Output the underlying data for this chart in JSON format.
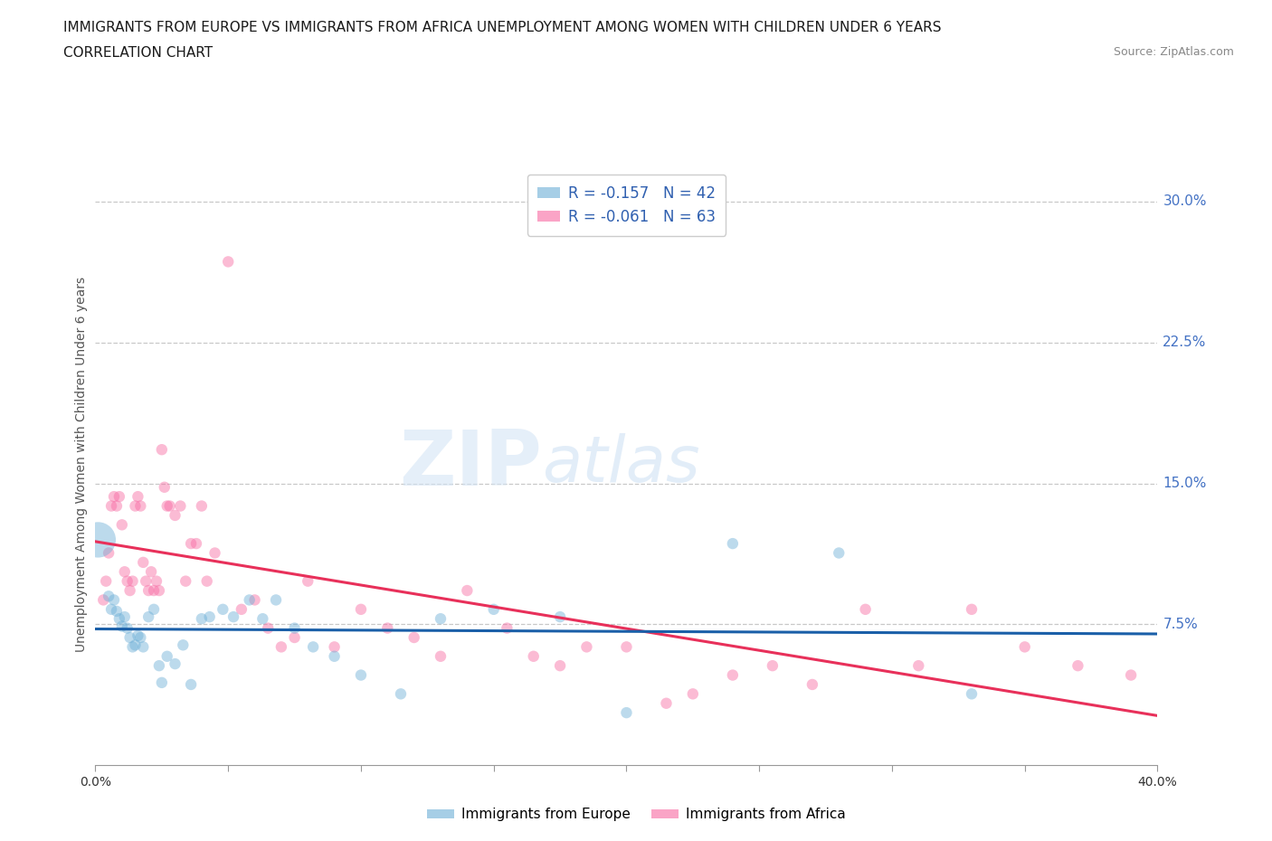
{
  "title_line1": "IMMIGRANTS FROM EUROPE VS IMMIGRANTS FROM AFRICA UNEMPLOYMENT AMONG WOMEN WITH CHILDREN UNDER 6 YEARS",
  "title_line2": "CORRELATION CHART",
  "source": "Source: ZipAtlas.com",
  "ylabel": "Unemployment Among Women with Children Under 6 years",
  "xlim": [
    0.0,
    0.4
  ],
  "ylim": [
    0.0,
    0.32
  ],
  "yticks": [
    0.075,
    0.15,
    0.225,
    0.3
  ],
  "ytick_labels": [
    "7.5%",
    "15.0%",
    "22.5%",
    "30.0%"
  ],
  "xticks": [
    0.0,
    0.05,
    0.1,
    0.15,
    0.2,
    0.25,
    0.3,
    0.35,
    0.4
  ],
  "xtick_labels": [
    "0.0%",
    "",
    "",
    "",
    "",
    "",
    "",
    "",
    "40.0%"
  ],
  "europe_color": "#6baed6",
  "africa_color": "#f768a1",
  "europe_R": -0.157,
  "europe_N": 42,
  "africa_R": -0.061,
  "africa_N": 63,
  "europe_label": "Immigrants from Europe",
  "africa_label": "Immigrants from Africa",
  "background_color": "#ffffff",
  "grid_color": "#c8c8c8",
  "axis_label_color": "#4472c4",
  "watermark_zip": "ZIP",
  "watermark_atlas": "atlas",
  "europe_x": [
    0.001,
    0.005,
    0.006,
    0.007,
    0.008,
    0.009,
    0.01,
    0.011,
    0.012,
    0.013,
    0.014,
    0.015,
    0.016,
    0.017,
    0.018,
    0.02,
    0.022,
    0.024,
    0.025,
    0.027,
    0.03,
    0.033,
    0.036,
    0.04,
    0.043,
    0.048,
    0.052,
    0.058,
    0.063,
    0.068,
    0.075,
    0.082,
    0.09,
    0.1,
    0.115,
    0.13,
    0.15,
    0.175,
    0.2,
    0.24,
    0.28,
    0.33
  ],
  "europe_y": [
    0.12,
    0.09,
    0.083,
    0.088,
    0.082,
    0.078,
    0.074,
    0.079,
    0.073,
    0.068,
    0.063,
    0.064,
    0.069,
    0.068,
    0.063,
    0.079,
    0.083,
    0.053,
    0.044,
    0.058,
    0.054,
    0.064,
    0.043,
    0.078,
    0.079,
    0.083,
    0.079,
    0.088,
    0.078,
    0.088,
    0.073,
    0.063,
    0.058,
    0.048,
    0.038,
    0.078,
    0.083,
    0.079,
    0.028,
    0.118,
    0.113,
    0.038
  ],
  "africa_x": [
    0.003,
    0.004,
    0.005,
    0.006,
    0.007,
    0.008,
    0.009,
    0.01,
    0.011,
    0.012,
    0.013,
    0.014,
    0.015,
    0.016,
    0.017,
    0.018,
    0.019,
    0.02,
    0.021,
    0.022,
    0.023,
    0.024,
    0.025,
    0.026,
    0.027,
    0.028,
    0.03,
    0.032,
    0.034,
    0.036,
    0.038,
    0.04,
    0.042,
    0.045,
    0.05,
    0.055,
    0.06,
    0.065,
    0.07,
    0.075,
    0.08,
    0.09,
    0.1,
    0.11,
    0.12,
    0.13,
    0.14,
    0.155,
    0.165,
    0.175,
    0.185,
    0.2,
    0.215,
    0.225,
    0.24,
    0.255,
    0.27,
    0.29,
    0.31,
    0.33,
    0.35,
    0.37,
    0.39
  ],
  "africa_y": [
    0.088,
    0.098,
    0.113,
    0.138,
    0.143,
    0.138,
    0.143,
    0.128,
    0.103,
    0.098,
    0.093,
    0.098,
    0.138,
    0.143,
    0.138,
    0.108,
    0.098,
    0.093,
    0.103,
    0.093,
    0.098,
    0.093,
    0.168,
    0.148,
    0.138,
    0.138,
    0.133,
    0.138,
    0.098,
    0.118,
    0.118,
    0.138,
    0.098,
    0.113,
    0.268,
    0.083,
    0.088,
    0.073,
    0.063,
    0.068,
    0.098,
    0.063,
    0.083,
    0.073,
    0.068,
    0.058,
    0.093,
    0.073,
    0.058,
    0.053,
    0.063,
    0.063,
    0.033,
    0.038,
    0.048,
    0.053,
    0.043,
    0.083,
    0.053,
    0.083,
    0.063,
    0.053,
    0.048
  ],
  "europe_sizes": [
    800,
    80,
    80,
    80,
    80,
    80,
    80,
    80,
    80,
    80,
    80,
    80,
    80,
    80,
    80,
    80,
    80,
    80,
    80,
    80,
    80,
    80,
    80,
    80,
    80,
    80,
    80,
    80,
    80,
    80,
    80,
    80,
    80,
    80,
    80,
    80,
    80,
    80,
    80,
    80,
    80,
    80
  ],
  "africa_sizes": [
    80,
    80,
    80,
    80,
    80,
    80,
    80,
    80,
    80,
    80,
    80,
    80,
    80,
    80,
    80,
    80,
    80,
    80,
    80,
    80,
    80,
    80,
    80,
    80,
    80,
    80,
    80,
    80,
    80,
    80,
    80,
    80,
    80,
    80,
    80,
    80,
    80,
    80,
    80,
    80,
    80,
    80,
    80,
    80,
    80,
    80,
    80,
    80,
    80,
    80,
    80,
    80,
    80,
    80,
    80,
    80,
    80,
    80,
    80,
    80,
    80,
    80,
    80
  ]
}
